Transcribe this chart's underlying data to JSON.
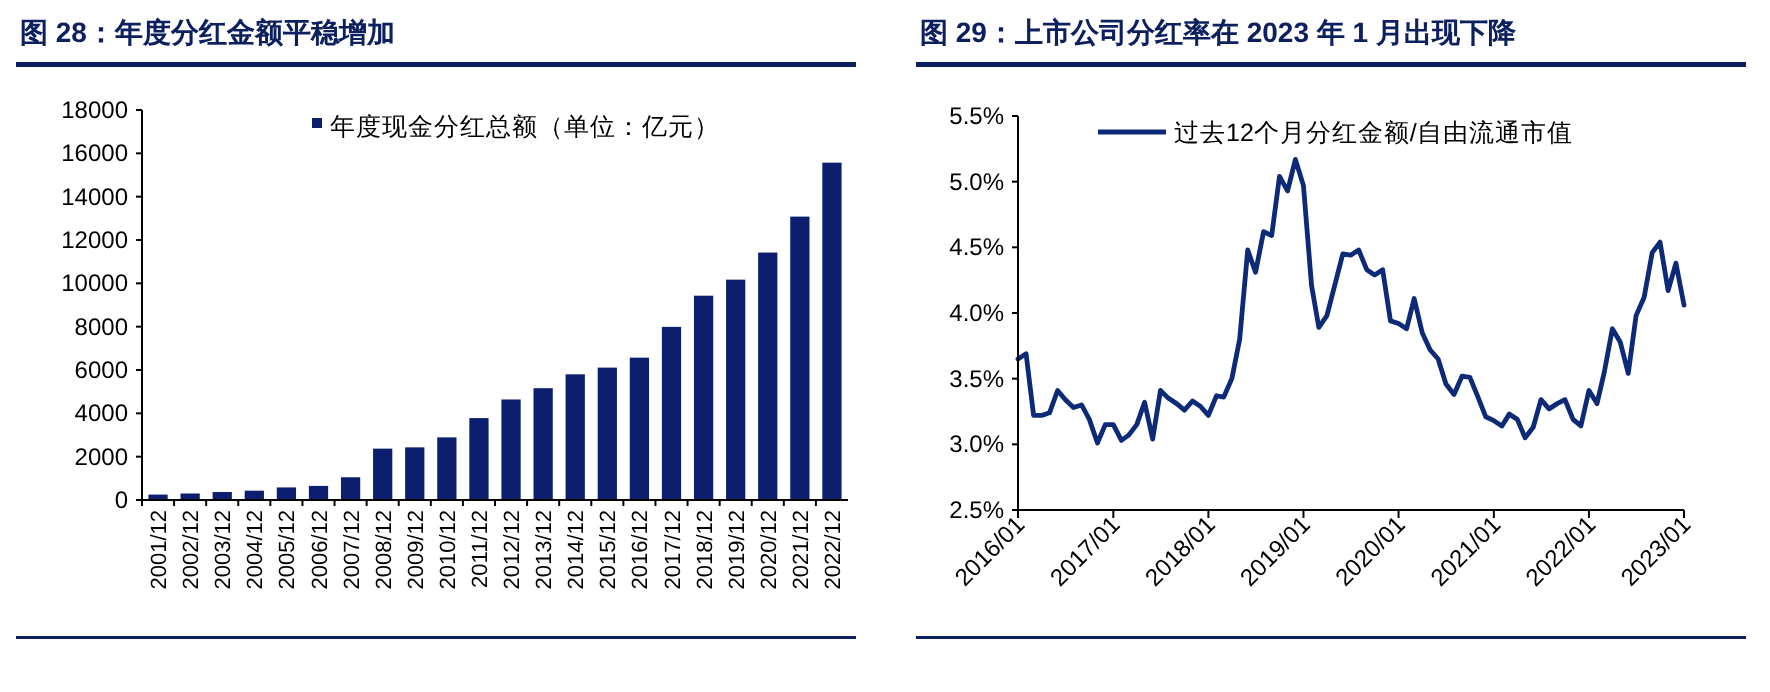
{
  "chart_data": [
    {
      "type": "bar",
      "title": "图 28：年度分红金额平稳增加",
      "categories": [
        "2001/12",
        "2002/12",
        "2003/12",
        "2004/12",
        "2005/12",
        "2006/12",
        "2007/12",
        "2008/12",
        "2009/12",
        "2010/12",
        "2011/12",
        "2012/12",
        "2013/12",
        "2014/12",
        "2015/12",
        "2016/12",
        "2017/12",
        "2018/12",
        "2019/12",
        "2020/12",
        "2021/12",
        "2022/12"
      ],
      "series": [
        {
          "name": "年度现金分红总额（单位：亿元）",
          "color": "#0c1f6e",
          "values": [
            250,
            300,
            370,
            430,
            580,
            650,
            1050,
            2370,
            2430,
            2890,
            3780,
            4640,
            5160,
            5800,
            6110,
            6570,
            7990,
            9430,
            10170,
            11420,
            13080,
            15570
          ]
        }
      ],
      "ylim": [
        0,
        18000
      ],
      "yticks": [
        0,
        2000,
        4000,
        6000,
        8000,
        10000,
        12000,
        14000,
        16000,
        18000
      ],
      "legend": "top",
      "grid": false
    },
    {
      "type": "line",
      "title": "图 29：上市公司分红率在 2023 年 1 月出现下降",
      "x": [
        "2016-01",
        "2016-02",
        "2016-03",
        "2016-04",
        "2016-05",
        "2016-06",
        "2016-07",
        "2016-08",
        "2016-09",
        "2016-10",
        "2016-11",
        "2016-12",
        "2017-01",
        "2017-02",
        "2017-03",
        "2017-04",
        "2017-05",
        "2017-06",
        "2017-07",
        "2017-08",
        "2017-09",
        "2017-10",
        "2017-11",
        "2017-12",
        "2018-01",
        "2018-02",
        "2018-03",
        "2018-04",
        "2018-05",
        "2018-06",
        "2018-07",
        "2018-08",
        "2018-09",
        "2018-10",
        "2018-11",
        "2018-12",
        "2019-01",
        "2019-02",
        "2019-03",
        "2019-04",
        "2019-05",
        "2019-06",
        "2019-07",
        "2019-08",
        "2019-09",
        "2019-10",
        "2019-11",
        "2019-12",
        "2020-01",
        "2020-02",
        "2020-03",
        "2020-04",
        "2020-05",
        "2020-06",
        "2020-07",
        "2020-08",
        "2020-09",
        "2020-10",
        "2020-11",
        "2020-12",
        "2021-01",
        "2021-02",
        "2021-03",
        "2021-04",
        "2021-05",
        "2021-06",
        "2021-07",
        "2021-08",
        "2021-09",
        "2021-10",
        "2021-11",
        "2021-12",
        "2022-01",
        "2022-02",
        "2022-03",
        "2022-04",
        "2022-05",
        "2022-06",
        "2022-07",
        "2022-08",
        "2022-09",
        "2022-10",
        "2022-11",
        "2022-12",
        "2023-01"
      ],
      "series": [
        {
          "name": "过去12个月分红金额/自由流通市值",
          "color": "#0c2a78",
          "values": [
            3.65,
            3.69,
            3.22,
            3.22,
            3.24,
            3.41,
            3.34,
            3.28,
            3.3,
            3.19,
            3.01,
            3.15,
            3.15,
            3.03,
            3.07,
            3.15,
            3.32,
            3.04,
            3.41,
            3.35,
            3.31,
            3.26,
            3.33,
            3.29,
            3.22,
            3.37,
            3.36,
            3.5,
            3.8,
            4.48,
            4.31,
            4.62,
            4.59,
            5.04,
            4.93,
            5.17,
            4.97,
            4.21,
            3.89,
            3.98,
            4.21,
            4.45,
            4.44,
            4.48,
            4.33,
            4.29,
            4.33,
            3.94,
            3.92,
            3.88,
            4.11,
            3.85,
            3.72,
            3.65,
            3.46,
            3.38,
            3.52,
            3.51,
            3.36,
            3.21,
            3.18,
            3.14,
            3.23,
            3.19,
            3.05,
            3.13,
            3.34,
            3.27,
            3.31,
            3.34,
            3.19,
            3.14,
            3.41,
            3.31,
            3.55,
            3.88,
            3.78,
            3.54,
            3.98,
            4.12,
            4.46,
            4.54,
            4.17,
            4.38,
            4.06
          ]
        }
      ],
      "xlim": [
        "2016-01",
        "2023-01"
      ],
      "xticks": [
        {
          "value": "2016-01",
          "label": "2016/01"
        },
        {
          "value": "2017-01",
          "label": "2017/01"
        },
        {
          "value": "2018-01",
          "label": "2018/01"
        },
        {
          "value": "2019-01",
          "label": "2019/01"
        },
        {
          "value": "2020-01",
          "label": "2020/01"
        },
        {
          "value": "2021-01",
          "label": "2021/01"
        },
        {
          "value": "2022-01",
          "label": "2022/01"
        },
        {
          "value": "2023-01",
          "label": "2023/01"
        }
      ],
      "ylim": [
        2.5,
        5.5
      ],
      "yticks": [
        {
          "value": 2.5,
          "label": "2.5%"
        },
        {
          "value": 3.0,
          "label": "3.0%"
        },
        {
          "value": 3.5,
          "label": "3.5%"
        },
        {
          "value": 4.0,
          "label": "4.0%"
        },
        {
          "value": 4.5,
          "label": "4.5%"
        },
        {
          "value": 5.0,
          "label": "5.0%"
        },
        {
          "value": 5.5,
          "label": "5.5%"
        }
      ],
      "legend": "top",
      "grid": false
    }
  ]
}
